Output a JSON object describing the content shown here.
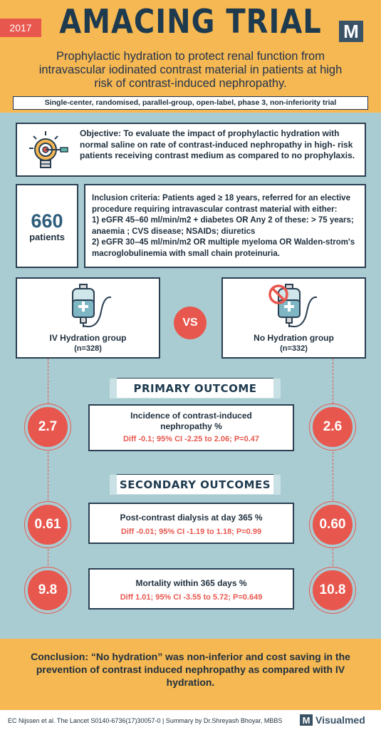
{
  "header": {
    "year": "2017",
    "title": "AMACING TRIAL",
    "subtitle": "Prophylactic hydration to protect renal function from intravascular iodinated contrast material in patients at high risk of contrast-induced nephropathy.",
    "design": "Single-center, randomised, parallel-group, open-label, phase 3, non-inferiority trial"
  },
  "objective": "Objective: To evaluate the impact of prophylactic hydration with normal saline on rate of contrast-induced nephropathy in high- risk patients receiving contrast medium as compared to no prophylaxis.",
  "patients": {
    "count": "660",
    "label": "patients"
  },
  "inclusion": {
    "line1": "Inclusion criteria: Patients aged ≥ 18 years, referred for an elective procedure requiring intravascular contrast material with either:",
    "line2": "1) eGFR 45–60 ml/min/m2 + diabetes OR Any 2 of these: > 75 years; anaemia ; CVS disease; NSAIDs; diuretics",
    "line3": "2) eGFR 30–45 ml/min/m2 OR multiple myeloma OR Walden-strom's macroglobulinemia with small chain proteinuria."
  },
  "groups": {
    "left": {
      "name": "IV Hydration group",
      "n": "(n=328)"
    },
    "right": {
      "name": "No Hydration group",
      "n": "(n=332)"
    },
    "vs": "VS"
  },
  "primary": {
    "heading": "PRIMARY OUTCOME",
    "title": "Incidence of contrast-induced nephropathy %",
    "stat": "Diff -0.1; 95% CI -2.25 to 2.06; P=0.47",
    "left": "2.7",
    "right": "2.6"
  },
  "secondary": {
    "heading": "SECONDARY OUTCOMES",
    "dialysis": {
      "title": "Post-contrast dialysis at day 365 %",
      "stat": "Diff -0.01; 95% CI -1.19 to 1.18; P=0.99",
      "left": "0.61",
      "right": "0.60"
    },
    "mortality": {
      "title": "Mortality within 365 days %",
      "stat": "Diff 1.01; 95% CI -3.55 to 5.72; P=0.649",
      "left": "9.8",
      "right": "10.8"
    }
  },
  "conclusion": "Conclusion: “No hydration” was non-inferior and cost saving in the prevention of contrast induced nephropathy as compared with IV hydration.",
  "footer": {
    "citation": "EC Nijssen et al. The Lancet S0140-6736(17)30057-0 | Summary by Dr.Shreyash Bhoyar, MBBS",
    "logo_letter": "M",
    "brand": "Visualmed"
  },
  "colors": {
    "accent": "#e8574e",
    "header": "#f6b852",
    "background": "#a9ccd2",
    "navy": "#1e3a4e"
  },
  "icons": [
    "lightbulb-target-icon",
    "iv-bag-icon",
    "no-iv-bag-icon"
  ]
}
